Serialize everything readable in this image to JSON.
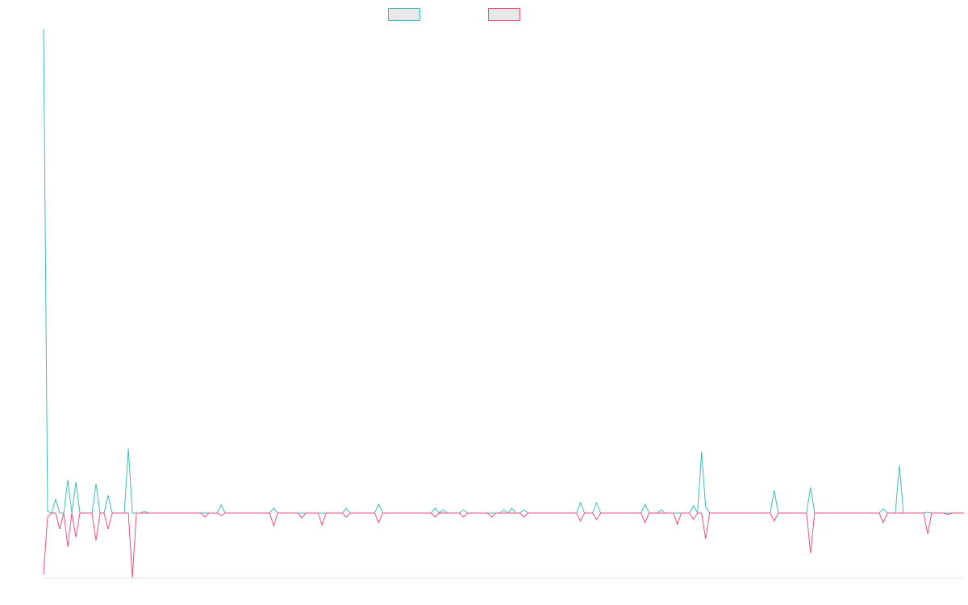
{
  "chart_data": {
    "type": "line",
    "ylim": [
      -80,
      600
    ],
    "series": [
      {
        "color": "#3fbcbc",
        "values": [
          600,
          2,
          0,
          17,
          0,
          0,
          41,
          0,
          38,
          0,
          0,
          0,
          0,
          36,
          0,
          0,
          22,
          0,
          0,
          0,
          0,
          80,
          0,
          0,
          0,
          2,
          0,
          0,
          0,
          0,
          0,
          0,
          0,
          0,
          0,
          0,
          0,
          0,
          0,
          0,
          0,
          0,
          0,
          0,
          10,
          0,
          0,
          0,
          0,
          0,
          0,
          0,
          0,
          0,
          0,
          0,
          0,
          6,
          0,
          0,
          0,
          0,
          0,
          0,
          0,
          0,
          0,
          0,
          0,
          0,
          0,
          0,
          0,
          0,
          0,
          6,
          0,
          0,
          0,
          0,
          0,
          0,
          0,
          11,
          0,
          0,
          0,
          0,
          0,
          0,
          0,
          0,
          0,
          0,
          0,
          0,
          0,
          6,
          0,
          4,
          0,
          0,
          0,
          0,
          4,
          0,
          0,
          0,
          0,
          0,
          0,
          0,
          0,
          0,
          4,
          0,
          6,
          0,
          0,
          4,
          0,
          0,
          0,
          0,
          0,
          0,
          0,
          0,
          0,
          0,
          0,
          0,
          0,
          13,
          0,
          0,
          0,
          13,
          0,
          0,
          0,
          0,
          0,
          0,
          0,
          0,
          0,
          0,
          0,
          11,
          0,
          0,
          0,
          4,
          0,
          0,
          0,
          0,
          0,
          0,
          0,
          9,
          0,
          76,
          8,
          0,
          0,
          0,
          0,
          0,
          0,
          0,
          0,
          0,
          0,
          0,
          0,
          0,
          0,
          0,
          0,
          28,
          0,
          0,
          0,
          0,
          0,
          0,
          0,
          0,
          32,
          0,
          0,
          0,
          0,
          0,
          0,
          0,
          0,
          0,
          0,
          0,
          0,
          0,
          0,
          0,
          0,
          0,
          5,
          0,
          0,
          0,
          59,
          0,
          0,
          0,
          0,
          0,
          0,
          1,
          0,
          0,
          0,
          0,
          0,
          0,
          0,
          0,
          0
        ]
      },
      {
        "color": "#f0507a",
        "values": [
          -76,
          -5,
          0,
          0,
          -20,
          0,
          -42,
          0,
          -30,
          0,
          0,
          0,
          0,
          -34,
          0,
          0,
          -20,
          0,
          0,
          0,
          0,
          0,
          -80,
          0,
          0,
          0,
          0,
          0,
          0,
          0,
          0,
          0,
          0,
          0,
          0,
          0,
          0,
          0,
          0,
          0,
          -5,
          0,
          0,
          0,
          -3,
          0,
          0,
          0,
          0,
          0,
          0,
          0,
          0,
          0,
          0,
          0,
          0,
          -16,
          0,
          0,
          0,
          0,
          0,
          0,
          -6,
          0,
          0,
          0,
          0,
          -15,
          0,
          0,
          0,
          0,
          0,
          -5,
          0,
          0,
          0,
          0,
          0,
          0,
          0,
          -12,
          0,
          0,
          0,
          0,
          0,
          0,
          0,
          0,
          0,
          0,
          0,
          0,
          0,
          -5,
          0,
          0,
          0,
          0,
          0,
          0,
          -5,
          0,
          0,
          0,
          0,
          0,
          0,
          -5,
          0,
          0,
          0,
          0,
          0,
          0,
          0,
          -5,
          0,
          0,
          0,
          0,
          0,
          0,
          0,
          0,
          0,
          0,
          0,
          0,
          0,
          -10,
          0,
          0,
          0,
          -8,
          0,
          0,
          0,
          0,
          0,
          0,
          0,
          0,
          0,
          0,
          0,
          -12,
          0,
          0,
          0,
          0,
          0,
          0,
          0,
          -14,
          0,
          0,
          0,
          -8,
          0,
          0,
          -32,
          0,
          0,
          0,
          0,
          0,
          0,
          0,
          0,
          0,
          0,
          0,
          0,
          0,
          0,
          0,
          0,
          -10,
          0,
          0,
          0,
          0,
          0,
          0,
          0,
          0,
          -50,
          0,
          0,
          0,
          0,
          0,
          0,
          0,
          0,
          0,
          0,
          0,
          0,
          0,
          0,
          0,
          0,
          0,
          -12,
          0,
          0,
          0,
          0,
          0,
          0,
          0,
          0,
          0,
          0,
          -26,
          0,
          0,
          0,
          0,
          -2,
          0,
          0,
          0,
          0
        ]
      }
    ]
  }
}
